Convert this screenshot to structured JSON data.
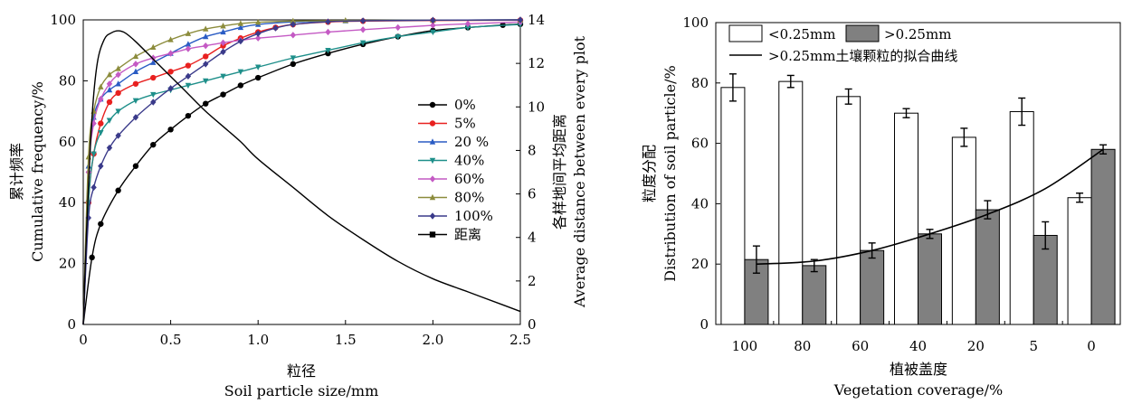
{
  "chart_data": [
    {
      "type": "line",
      "xlabel_cn": "粒径",
      "xlabel_en": "Soil particle size/mm",
      "ylabel_cn": "累计频率",
      "ylabel_en": "Cumulative frequency/%",
      "y2label_cn": "各样地间平均距离",
      "y2label_en": "Average distance between every plot",
      "xlim": [
        0,
        2.5
      ],
      "ylim": [
        0,
        100
      ],
      "y2lim": [
        0,
        14
      ],
      "x_ticks": [
        "0",
        "0.5",
        "1.0",
        "1.5",
        "2.0",
        "2.5"
      ],
      "y_ticks": [
        "0",
        "20",
        "40",
        "60",
        "80",
        "100"
      ],
      "y2_ticks": [
        "0",
        "2",
        "4",
        "6",
        "8",
        "10",
        "12",
        "14"
      ],
      "legend_position": "right",
      "series": [
        {
          "name": "0%",
          "color": "#000000",
          "marker": "circle",
          "x": [
            0,
            0.05,
            0.1,
            0.2,
            0.3,
            0.4,
            0.5,
            0.6,
            0.7,
            0.8,
            0.9,
            1.0,
            1.2,
            1.4,
            1.6,
            1.8,
            2.0,
            2.2,
            2.4,
            2.5
          ],
          "y": [
            0,
            22,
            33,
            44,
            52,
            59,
            64,
            68.5,
            72.5,
            75.5,
            78.5,
            81,
            85.5,
            89,
            92,
            94.5,
            96.5,
            97.5,
            98.3,
            98.6
          ]
        },
        {
          "name": "5%",
          "color": "#e8201f",
          "marker": "circle",
          "x": [
            0,
            0.03,
            0.06,
            0.1,
            0.15,
            0.2,
            0.3,
            0.4,
            0.5,
            0.6,
            0.7,
            0.8,
            0.9,
            1.0,
            1.1,
            1.2,
            1.4,
            1.6,
            2.0,
            2.5
          ],
          "y": [
            0,
            40,
            56,
            66,
            73,
            76,
            79,
            81,
            83,
            85,
            88,
            91.5,
            94,
            96,
            97.5,
            98.5,
            99.3,
            99.6,
            99.8,
            99.9
          ]
        },
        {
          "name": "20 %",
          "color": "#2a5cc4",
          "marker": "triangle-up",
          "x": [
            0,
            0.03,
            0.06,
            0.1,
            0.15,
            0.2,
            0.3,
            0.4,
            0.5,
            0.6,
            0.7,
            0.8,
            0.9,
            1.0,
            1.2,
            1.5,
            2.0,
            2.5
          ],
          "y": [
            0,
            52,
            68,
            74,
            77,
            79,
            83,
            86,
            89,
            92,
            94.5,
            96,
            97.5,
            98.5,
            99.3,
            99.7,
            99.9,
            100
          ]
        },
        {
          "name": "40%",
          "color": "#1e8f8a",
          "marker": "triangle-down",
          "x": [
            0,
            0.03,
            0.06,
            0.1,
            0.15,
            0.2,
            0.3,
            0.4,
            0.5,
            0.6,
            0.7,
            0.8,
            0.9,
            1.0,
            1.2,
            1.4,
            1.6,
            1.8,
            2.0,
            2.2,
            2.5
          ],
          "y": [
            0,
            40,
            56,
            63,
            67,
            70,
            73.5,
            75.5,
            77,
            78.5,
            80,
            81.5,
            83,
            84.5,
            87.5,
            90,
            92.5,
            94.5,
            96,
            97.5,
            98.5
          ]
        },
        {
          "name": "60%",
          "color": "#c45ac4",
          "marker": "diamond",
          "x": [
            0,
            0.03,
            0.06,
            0.1,
            0.15,
            0.2,
            0.3,
            0.4,
            0.5,
            0.6,
            0.7,
            0.8,
            0.9,
            1.0,
            1.2,
            1.4,
            1.6,
            1.8,
            2.0,
            2.2,
            2.5
          ],
          "y": [
            0,
            50,
            66,
            74,
            79,
            82,
            85.5,
            87.5,
            89,
            90.5,
            91.5,
            92.5,
            93.3,
            94,
            95,
            96,
            96.8,
            97.5,
            98.2,
            98.7,
            99.3
          ]
        },
        {
          "name": "80%",
          "color": "#8c8c3c",
          "marker": "triangle-up",
          "x": [
            0,
            0.03,
            0.06,
            0.1,
            0.15,
            0.2,
            0.3,
            0.4,
            0.5,
            0.6,
            0.7,
            0.8,
            0.9,
            1.0,
            1.2,
            1.5,
            2.0,
            2.5
          ],
          "y": [
            0,
            55,
            70,
            78,
            82,
            84,
            88,
            91,
            93.5,
            95.5,
            97,
            98,
            98.8,
            99.2,
            99.6,
            99.8,
            99.9,
            100
          ]
        },
        {
          "name": "100%",
          "color": "#3a3a8a",
          "marker": "diamond",
          "x": [
            0,
            0.03,
            0.06,
            0.1,
            0.15,
            0.2,
            0.3,
            0.4,
            0.5,
            0.6,
            0.7,
            0.8,
            0.9,
            1.0,
            1.1,
            1.2,
            1.4,
            1.6,
            2.0,
            2.5
          ],
          "y": [
            0,
            35,
            45,
            52,
            58,
            62,
            68,
            73,
            77.5,
            81.5,
            85.5,
            89.5,
            93,
            95.5,
            97.3,
            98.5,
            99.4,
            99.7,
            99.9,
            100
          ]
        },
        {
          "name": "距离",
          "color": "#000000",
          "marker": "none",
          "axis": "y2",
          "x": [
            0,
            0.02,
            0.05,
            0.08,
            0.12,
            0.16,
            0.2,
            0.24,
            0.3,
            0.4,
            0.5,
            0.6,
            0.7,
            0.8,
            0.9,
            1.0,
            1.2,
            1.4,
            1.6,
            1.8,
            2.0,
            2.2,
            2.4,
            2.5
          ],
          "y": [
            0,
            4.5,
            9.5,
            12,
            13.1,
            13.4,
            13.5,
            13.4,
            13,
            12.2,
            11.4,
            10.6,
            9.8,
            9.1,
            8.4,
            7.6,
            6.3,
            5,
            3.9,
            2.9,
            2.1,
            1.5,
            0.9,
            0.6
          ]
        }
      ]
    },
    {
      "type": "bar",
      "xlabel_cn": "植被盖度",
      "xlabel_en": "Vegetation coverage/%",
      "ylabel_cn": "粒度分配",
      "ylabel_en": "Distribution of soil particle/%",
      "categories": [
        "100",
        "80",
        "60",
        "40",
        "20",
        "5",
        "0"
      ],
      "ylim": [
        0,
        100
      ],
      "y_ticks": [
        "0",
        "20",
        "40",
        "60",
        "80",
        "100"
      ],
      "legend_position": "top-left",
      "series": [
        {
          "name": "<0.25mm",
          "color": "#ffffff",
          "values": [
            78.5,
            80.5,
            75.5,
            70,
            62,
            70.5,
            42
          ],
          "errors": [
            4.5,
            2,
            2.5,
            1.5,
            3,
            4.5,
            1.5
          ]
        },
        {
          "name": ">0.25mm",
          "color": "#808080",
          "values": [
            21.5,
            19.5,
            24.5,
            30,
            38,
            29.5,
            58
          ],
          "errors": [
            4.5,
            2,
            2.5,
            1.5,
            3,
            4.5,
            1.5
          ]
        }
      ],
      "fit_curve": {
        "name": ">0.25mm土壤颗粒的拟合曲线",
        "values": [
          20,
          21,
          24.5,
          30,
          36.5,
          45,
          58
        ]
      }
    }
  ]
}
